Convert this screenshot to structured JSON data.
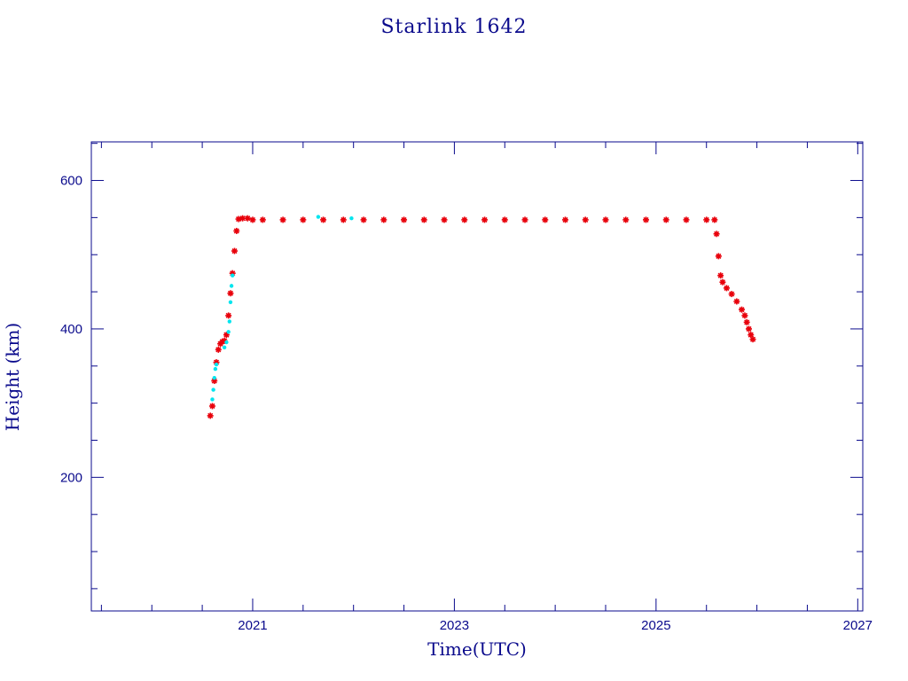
{
  "chart_data": {
    "type": "scatter",
    "title": "Starlink 1642",
    "xlabel": "Time(UTC)",
    "ylabel": "Height (km)",
    "xlim": [
      2019.4,
      2027.05
    ],
    "ylim": [
      20,
      652
    ],
    "x_major_ticks": [
      2021,
      2023,
      2025,
      2027
    ],
    "x_tick_labels": [
      "2021",
      "2023",
      "2025",
      "2027"
    ],
    "x_minor_step": 0.5,
    "y_major_ticks": [
      200,
      400,
      600
    ],
    "y_tick_labels": [
      "200",
      "400",
      "600"
    ],
    "y_minor_step": 50,
    "grid": false,
    "colors": {
      "axis": "#0a0a8c",
      "primary": "#e8000b",
      "secondary": "#00e5ee"
    },
    "series": [
      {
        "color": "#e8000b",
        "marker": "asterisk",
        "x": [
          2020.58,
          2020.6,
          2020.62,
          2020.64,
          2020.66,
          2020.68,
          2020.7,
          2020.72,
          2020.74,
          2020.76,
          2020.78,
          2020.8,
          2020.82,
          2020.84,
          2020.86,
          2020.9,
          2020.95,
          2021.0,
          2021.1,
          2021.3,
          2021.5,
          2021.7,
          2021.9,
          2022.1,
          2022.3,
          2022.5,
          2022.7,
          2022.9,
          2023.1,
          2023.3,
          2023.5,
          2023.7,
          2023.9,
          2024.1,
          2024.3,
          2024.5,
          2024.7,
          2024.9,
          2025.1,
          2025.3,
          2025.5,
          2025.58,
          2025.6,
          2025.62,
          2025.64,
          2025.66,
          2025.7,
          2025.75,
          2025.8,
          2025.85,
          2025.88,
          2025.9,
          2025.92,
          2025.94,
          2025.96
        ],
        "y": [
          283,
          296,
          330,
          355,
          372,
          380,
          383,
          384,
          392,
          418,
          448,
          475,
          505,
          532,
          548,
          549,
          549,
          547,
          547,
          547,
          547,
          547,
          547,
          547,
          547,
          547,
          547,
          547,
          547,
          547,
          547,
          547,
          547,
          547,
          547,
          547,
          547,
          547,
          547,
          547,
          547,
          547,
          528,
          498,
          472,
          463,
          455,
          447,
          437,
          426,
          418,
          409,
          400,
          392,
          386
        ]
      },
      {
        "color": "#00e5ee",
        "marker": "dot",
        "x": [
          2020.6,
          2020.61,
          2020.62,
          2020.63,
          2020.64,
          2020.72,
          2020.74,
          2020.76,
          2020.77,
          2020.78,
          2020.79,
          2020.8,
          2021.65,
          2021.98
        ],
        "y": [
          305,
          318,
          334,
          346,
          352,
          375,
          382,
          396,
          410,
          436,
          458,
          472,
          551,
          549
        ]
      }
    ]
  }
}
